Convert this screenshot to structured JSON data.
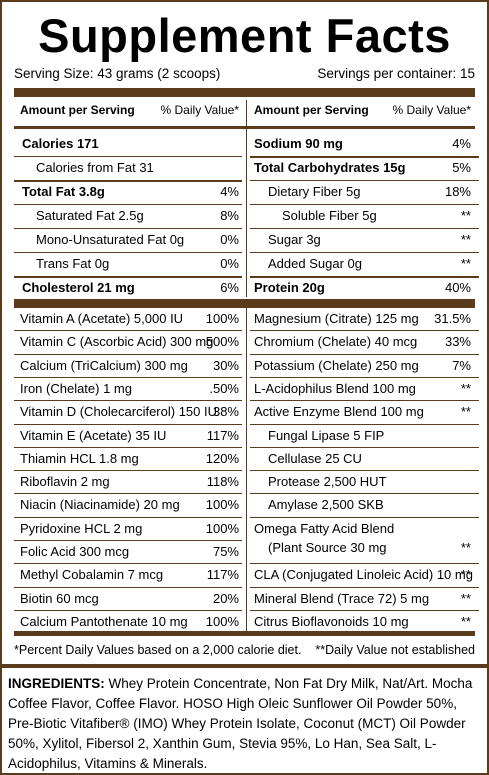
{
  "title": "Supplement Facts",
  "serving_size": "Serving Size:  43 grams (2 scoops)",
  "servings_per_container": "Servings per container:  15",
  "header_left": {
    "amount": "Amount per Serving",
    "dv": "% Daily Value*"
  },
  "header_right": {
    "amount": "Amount per Serving",
    "dv": "% Daily Value*"
  },
  "macros_left": [
    {
      "name": "Calories",
      "amount": "171",
      "dv": "",
      "bold": true
    },
    {
      "name": "Calories from Fat",
      "amount": "31",
      "dv": "",
      "indent": 1
    },
    {
      "name": "Total Fat",
      "amount": "3.8g",
      "dv": "4%",
      "bold": true
    },
    {
      "name": "Saturated Fat",
      "amount": "2.5g",
      "dv": "8%",
      "indent": 1
    },
    {
      "name": "Mono-Unsaturated Fat",
      "amount": "0g",
      "dv": "0%",
      "indent": 1
    },
    {
      "name": "Trans Fat",
      "amount": "0g",
      "dv": "0%",
      "indent": 1
    },
    {
      "name": "Cholesterol",
      "amount": "21 mg",
      "dv": "6%",
      "bold": true
    }
  ],
  "macros_right": [
    {
      "name": "Sodium",
      "amount": "90 mg",
      "dv": "4%",
      "bold": true
    },
    {
      "name": "Total Carbohydrates",
      "amount": "15g",
      "dv": "5%",
      "bold": true
    },
    {
      "name": "Dietary Fiber",
      "amount": "5g",
      "dv": "18%",
      "indent": 1
    },
    {
      "name": "Soluble Fiber",
      "amount": "5g",
      "dv": "**",
      "indent": 2
    },
    {
      "name": "Sugar",
      "amount": "3g",
      "dv": "**",
      "indent": 1
    },
    {
      "name": "Added Sugar",
      "amount": "0g",
      "dv": "**",
      "indent": 1
    },
    {
      "name": "Protein",
      "amount": "20g",
      "dv": "40%",
      "bold": true
    }
  ],
  "micros_left": [
    {
      "text": "Vitamin A (Acetate) 5,000 IU",
      "dv": "100%"
    },
    {
      "text": "Vitamin C (Ascorbic Acid) 300 mg",
      "dv": "500%"
    },
    {
      "text": "Calcium (TriCalcium) 300 mg",
      "dv": "30%"
    },
    {
      "text": "Iron (Chelate) 1 mg",
      "dv": ".50%"
    },
    {
      "text": "Vitamin D (Cholecarciferol) 150 IU",
      "dv": "38%"
    },
    {
      "text": "Vitamin E (Acetate) 35 IU",
      "dv": "117%"
    },
    {
      "text": "Thiamin HCL 1.8 mg",
      "dv": "120%"
    },
    {
      "text": "Riboflavin 2 mg",
      "dv": "118%"
    },
    {
      "text": "Niacin (Niacinamide) 20 mg",
      "dv": "100%"
    },
    {
      "text": "Pyridoxine HCL 2 mg",
      "dv": "100%"
    },
    {
      "text": "Folic Acid 300 mcg",
      "dv": "75%"
    },
    {
      "text": "Methyl Cobalamin 7 mcg",
      "dv": "117%"
    },
    {
      "text": "Biotin 60 mcg",
      "dv": "20%"
    },
    {
      "text": "Calcium Pantothenate 10 mg",
      "dv": "100%"
    }
  ],
  "micros_right": [
    {
      "text": "Magnesium (Citrate) 125 mg",
      "dv": "31.5%"
    },
    {
      "text": "Chromium (Chelate) 40 mcg",
      "dv": "33%"
    },
    {
      "text": "Potassium (Chelate) 250 mg",
      "dv": "7%"
    },
    {
      "text": "L-Acidophilus Blend 100 mg",
      "dv": "**"
    },
    {
      "text": "Active Enzyme Blend 100 mg",
      "dv": "**"
    },
    {
      "text": "Fungal Lipase 5 FIP",
      "dv": "",
      "indent": 1
    },
    {
      "text": "Cellulase 25 CU",
      "dv": "",
      "indent": 1
    },
    {
      "text": "Protease 2,500 HUT",
      "dv": "",
      "indent": 1
    },
    {
      "text": "Amylase 2,500 SKB",
      "dv": "",
      "indent": 1
    },
    {
      "text": "Omega Fatty Acid Blend",
      "text2": "(Plant Source 30 mg",
      "dv": "**"
    },
    {
      "text": "CLA (Conjugated Linoleic Acid) 10 mg",
      "dv": "**"
    },
    {
      "text": "Mineral Blend (Trace 72) 5 mg",
      "dv": "**"
    },
    {
      "text": "Citrus Bioflavonoids 10 mg",
      "dv": "**"
    }
  ],
  "footnote_left": "*Percent Daily Values based on a 2,000 calorie diet.",
  "footnote_right": "**Daily Value not established",
  "ingredients_label": "INGREDIENTS:",
  "ingredients_text": "Whey Protein Concentrate, Non Fat Dry Milk, Nat/Art. Mocha Coffee Flavor, Coffee Flavor. HOSO High Oleic Sunflower Oil Powder 50%, Pre-Biotic Vitafiber® (IMO) Whey Protein Isolate, Coconut (MCT) Oil Powder 50%, Xylitol, Fibersol 2, Xanthin Gum, Stevia 95%, Lo Han, Sea Salt, L-Acidophilus, Vitamins & Minerals.",
  "colors": {
    "border": "#5a3b1c",
    "text": "#000000"
  }
}
